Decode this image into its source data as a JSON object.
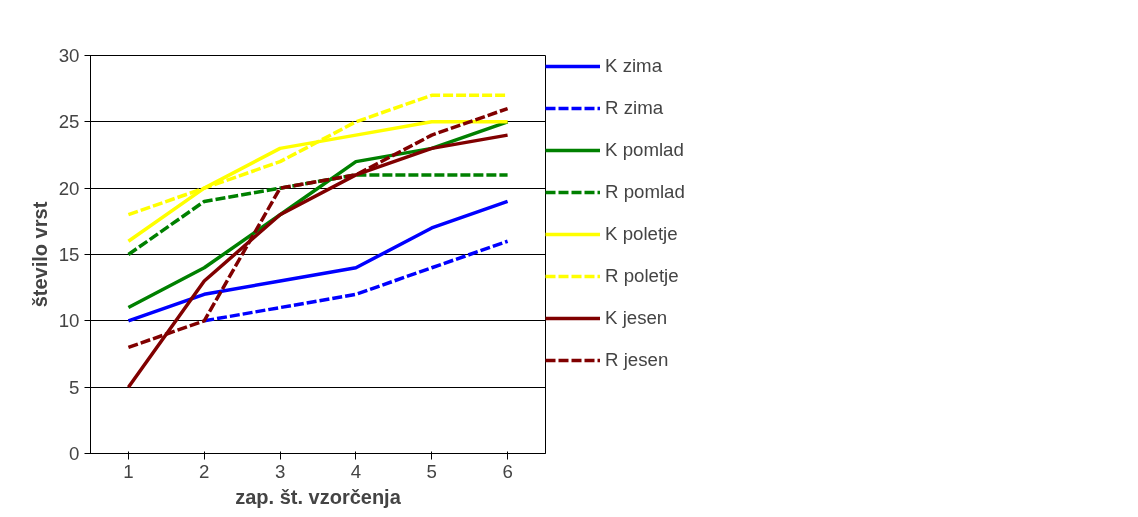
{
  "chart_data": {
    "type": "line",
    "xlabel": "zap. št. vzorčenja",
    "ylabel": "število vrst",
    "categories": [
      "1",
      "2",
      "3",
      "4",
      "5",
      "6"
    ],
    "ylim": [
      0,
      30
    ],
    "yticks": [
      0,
      5,
      10,
      15,
      20,
      25,
      30
    ],
    "grid": "y",
    "legend": "right",
    "marker": "none",
    "series": [
      {
        "name": "K zima",
        "color": "#0000ff",
        "line_style": "solid",
        "values": [
          10,
          12,
          13,
          14,
          17,
          19
        ]
      },
      {
        "name": "R zima",
        "color": "#0000ff",
        "line_style": "dashed",
        "values": [
          null,
          10,
          11,
          12,
          14,
          16
        ]
      },
      {
        "name": "K pomlad",
        "color": "#008000",
        "line_style": "solid",
        "values": [
          11,
          14,
          18,
          22,
          23,
          25
        ]
      },
      {
        "name": "R pomlad",
        "color": "#008000",
        "line_style": "dashed",
        "values": [
          15,
          19,
          20,
          21,
          21,
          21
        ]
      },
      {
        "name": "K poletje",
        "color": "#ffff00",
        "line_style": "solid",
        "values": [
          16,
          20,
          23,
          24,
          25,
          25
        ]
      },
      {
        "name": "R poletje",
        "color": "#ffff00",
        "line_style": "dashed",
        "values": [
          18,
          20,
          22,
          25,
          27,
          27
        ]
      },
      {
        "name": "K jesen",
        "color": "#800000",
        "line_style": "solid",
        "values": [
          5,
          13,
          18,
          21,
          23,
          24
        ]
      },
      {
        "name": "R jesen",
        "color": "#800000",
        "line_style": "dashed",
        "values": [
          8,
          10,
          20,
          21,
          24,
          26
        ]
      }
    ]
  }
}
